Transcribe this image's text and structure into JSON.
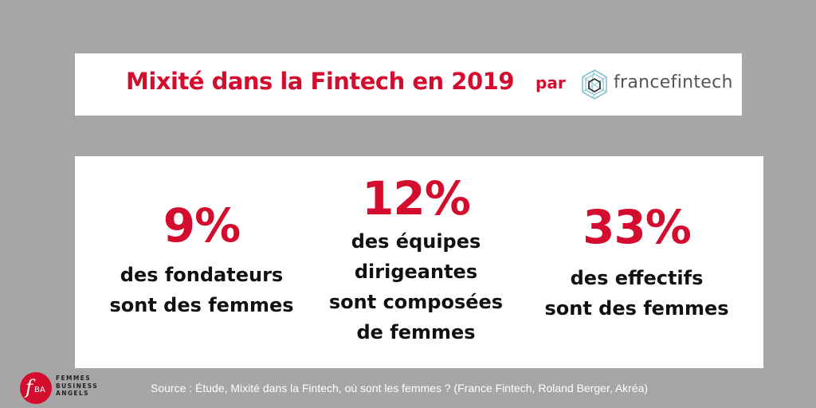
{
  "header": {
    "title": "Mixité dans la Fintech en 2019",
    "by": "par",
    "partner_logo_text": "francefintech",
    "partner_logo_icon": "hexagon-network-icon"
  },
  "stats": [
    {
      "value": "9%",
      "caption": "des fondateurs\nsont des femmes"
    },
    {
      "value": "12%",
      "caption": "des équipes\ndirigeantes\nsont composées\nde femmes"
    },
    {
      "value": "33%",
      "caption": "des effectifs\nsont des femmes"
    }
  ],
  "footer": {
    "source": "Source : Étude, Mixité dans la Fintech, où sont les femmes ? (France Fintech, Roland Berger, Akréa)",
    "logo_letters": "fBA",
    "logo_lines": [
      "FEMMES",
      "BUSINESS",
      "ANGELS"
    ]
  },
  "colors": {
    "accent": "#d40c2e",
    "background": "#a6a6a6",
    "card": "#ffffff",
    "text": "#111111"
  }
}
